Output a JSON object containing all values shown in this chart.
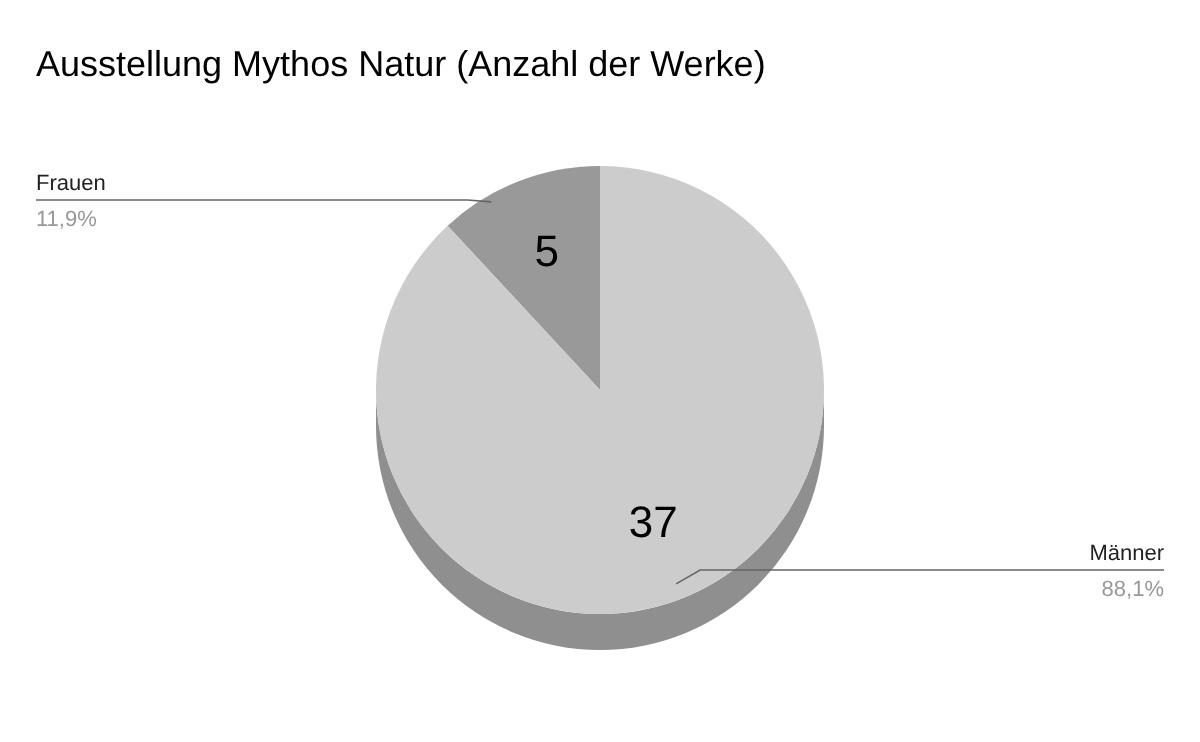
{
  "chart_data": {
    "type": "pie",
    "title": "Ausstellung Mythos Natur (Anzahl der Werke)",
    "categories": [
      "Frauen",
      "Männer"
    ],
    "values": [
      5,
      37
    ],
    "colors": [
      "#999999",
      "#cccccc"
    ],
    "data_labels": true,
    "annotations": [
      "11,9%",
      "88,1%"
    ],
    "legend": false
  }
}
